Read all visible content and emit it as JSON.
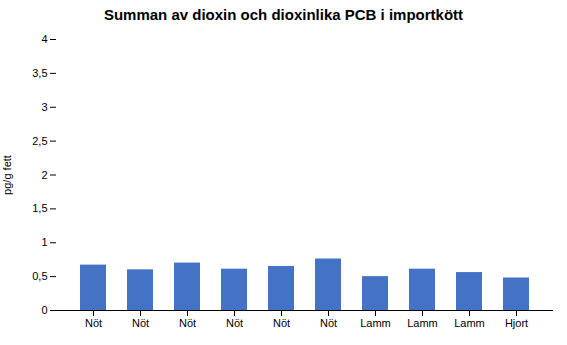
{
  "chart_data": {
    "type": "bar",
    "title": "Summan av dioxin och dioxinlika PCB i importkött",
    "ylabel": "pg/g fett",
    "categories": [
      "Nöt",
      "Nöt",
      "Nöt",
      "Nöt",
      "Nöt",
      "Nöt",
      "Lamm",
      "Lamm",
      "Lamm",
      "Hjort"
    ],
    "values": [
      0.67,
      0.6,
      0.7,
      0.61,
      0.65,
      0.76,
      0.5,
      0.61,
      0.56,
      0.48
    ],
    "color": "#4472C4",
    "ylim": [
      0,
      4
    ],
    "yticks": [
      0,
      {
        "value": 0.5,
        "label": "0,5"
      },
      1,
      {
        "value": 1.5,
        "label": "1,5"
      },
      2,
      {
        "value": 2.5,
        "label": "2,5"
      },
      3,
      {
        "value": 3.5,
        "label": "3,5"
      },
      4
    ],
    "grid": false
  }
}
